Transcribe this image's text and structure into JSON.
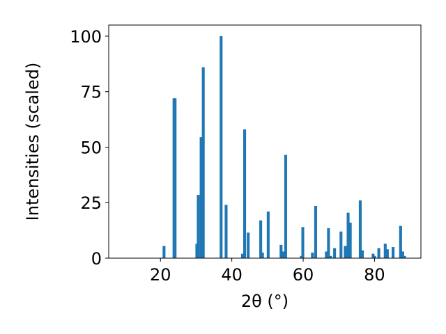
{
  "chart_data": {
    "type": "bar",
    "title": "",
    "xlabel": "2θ (°)",
    "ylabel": "Intensities (scaled)",
    "xlim": [
      5.5,
      93
    ],
    "ylim": [
      0,
      105
    ],
    "xticks": [
      20,
      40,
      60,
      80
    ],
    "yticks": [
      0,
      25,
      50,
      75,
      100
    ],
    "grid": false,
    "bar_width": 0.8,
    "bar_color": "#1f77b4",
    "x": [
      21.0,
      23.8,
      24.1,
      30.2,
      30.6,
      31.4,
      32.0,
      37.0,
      38.4,
      43.0,
      43.6,
      44.6,
      48.1,
      48.6,
      50.2,
      53.8,
      54.4,
      55.1,
      59.5,
      59.9,
      62.6,
      63.5,
      66.5,
      67.1,
      67.7,
      68.8,
      70.6,
      71.8,
      72.6,
      73.2,
      76.0,
      76.6,
      79.6,
      80.0,
      81.2,
      83.0,
      83.6,
      85.2,
      87.3,
      87.9,
      88.4
    ],
    "values": [
      5.5,
      72,
      72,
      6.5,
      28.5,
      54.5,
      86,
      100,
      24,
      2,
      58,
      11.5,
      17,
      2.5,
      21,
      6,
      3,
      46.5,
      1,
      14,
      2.5,
      23.5,
      3,
      13.5,
      1,
      4.5,
      12,
      5.5,
      20.5,
      16,
      26,
      3.5,
      2,
      1,
      4.5,
      6.5,
      4,
      5,
      14.5,
      3,
      1
    ]
  }
}
